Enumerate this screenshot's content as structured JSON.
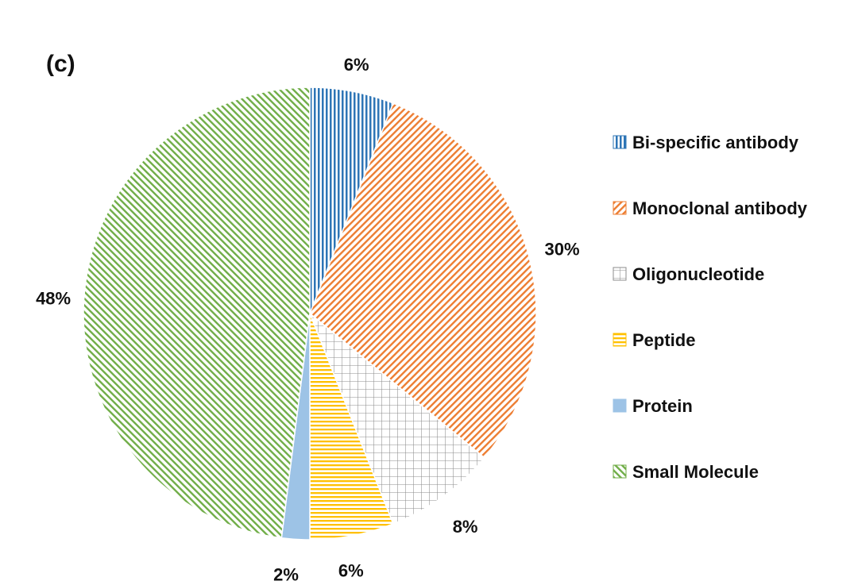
{
  "panel_label": "(c)",
  "chart_data": {
    "type": "pie",
    "title": "",
    "start_angle_deg": 0,
    "direction": "clockwise",
    "slices": [
      {
        "label": "Bi-specific antibody",
        "value": 6,
        "display": "6%",
        "color": "#2e75b6",
        "pattern": "vertical-lines"
      },
      {
        "label": "Monoclonal antibody",
        "value": 30,
        "display": "30%",
        "color": "#ed7d31",
        "pattern": "diagonal-up"
      },
      {
        "label": "Oligonucleotide",
        "value": 8,
        "display": "8%",
        "color": "#8c8c8c",
        "pattern": "grid"
      },
      {
        "label": "Peptide",
        "value": 6,
        "display": "6%",
        "color": "#ffc000",
        "pattern": "horizontal-lines"
      },
      {
        "label": "Protein",
        "value": 2,
        "display": "2%",
        "color": "#9dc3e6",
        "pattern": "solid"
      },
      {
        "label": "Small Molecule",
        "value": 48,
        "display": "48%",
        "color": "#70ad47",
        "pattern": "diagonal-down"
      }
    ],
    "legend_position": "right"
  }
}
